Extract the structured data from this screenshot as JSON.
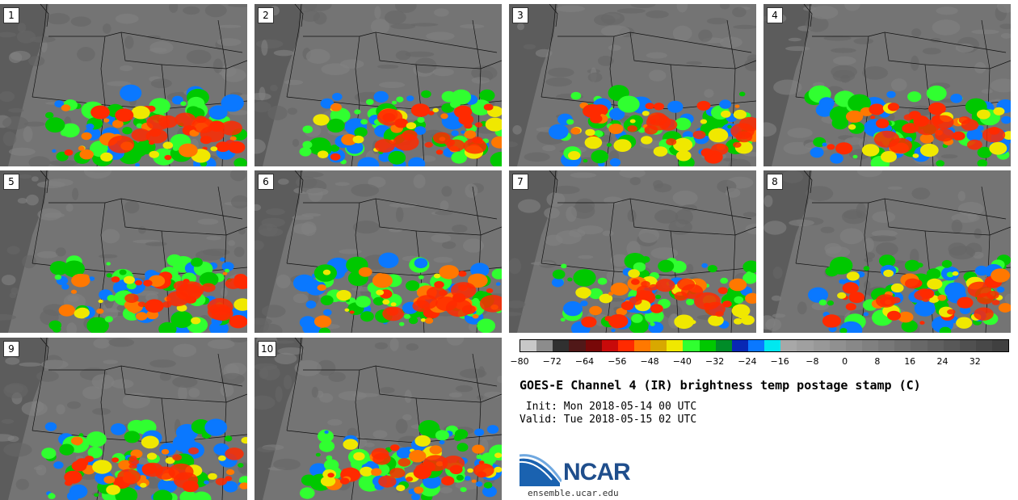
{
  "panels": [
    "1",
    "2",
    "3",
    "4",
    "5",
    "6",
    "7",
    "8",
    "9",
    "10"
  ],
  "colorbar": {
    "colors": [
      "#c8c8c8",
      "#8c8c8c",
      "#303030",
      "#501818",
      "#780808",
      "#c80a0a",
      "#ff2a00",
      "#ff7800",
      "#d8a800",
      "#f0e800",
      "#30ff30",
      "#00c800",
      "#008c28",
      "#0828b4",
      "#0a78ff",
      "#00e8f0",
      "#a8a8a8",
      "#a0a0a0",
      "#989898",
      "#909090",
      "#888888",
      "#808080",
      "#787878",
      "#707070",
      "#686868",
      "#606060",
      "#585858",
      "#505050",
      "#484848",
      "#404040"
    ],
    "ticks": [
      "−80",
      "−72",
      "−64",
      "−56",
      "−48",
      "−40",
      "−32",
      "−24",
      "−16",
      "−8",
      "0",
      "8",
      "16",
      "24",
      "32"
    ],
    "tick_values": [
      -80,
      -72,
      -64,
      -56,
      -48,
      -40,
      -32,
      -24,
      -16,
      -8,
      0,
      8,
      16,
      24,
      32
    ],
    "range": [
      -80,
      40
    ]
  },
  "title": "GOES-E Channel 4 (IR) brightness temp postage stamp (C)",
  "init": " Init: Mon 2018-05-14 00 UTC",
  "valid": "Valid: Tue 2018-05-15 02 UTC",
  "logo_text": "NCAR",
  "url": "ensemble.ucar.edu"
}
